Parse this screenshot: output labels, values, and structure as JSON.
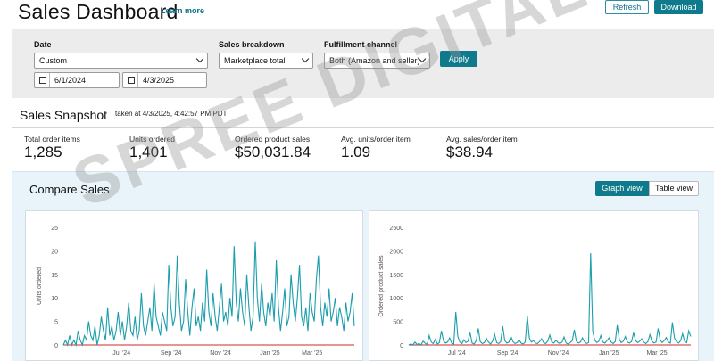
{
  "header": {
    "title": "Sales Dashboard",
    "learn_more": "Learn more",
    "refresh_label": "Refresh",
    "download_label": "Download"
  },
  "filters": {
    "date_label": "Date",
    "date_range_value": "Custom",
    "start_date": "6/1/2024",
    "end_date": "4/3/2025",
    "breakdown_label": "Sales breakdown",
    "breakdown_value": "Marketplace total",
    "channel_label": "Fulfillment channel",
    "channel_value": "Both (Amazon and seller)",
    "apply_label": "Apply"
  },
  "snapshot": {
    "title": "Sales Snapshot",
    "taken_at": "taken at 4/3/2025, 4:42:57 PM PDT",
    "metrics": [
      {
        "label": "Total order items",
        "value": "1,285"
      },
      {
        "label": "Units ordered",
        "value": "1,401"
      },
      {
        "label": "Ordered product sales",
        "value": "$50,031.84"
      },
      {
        "label": "Avg. units/order item",
        "value": "1.09"
      },
      {
        "label": "Avg. sales/order item",
        "value": "$38.94"
      }
    ]
  },
  "compare": {
    "title": "Compare Sales",
    "graph_view_label": "Graph view",
    "table_view_label": "Table view"
  },
  "watermark": "SPREE DIGITAL",
  "colors": {
    "accent": "#0f7a8c",
    "series": "#1a9eac",
    "baseline": "#d9534f"
  },
  "chart_data": [
    {
      "type": "line",
      "ylabel": "Units ordered",
      "yticks": [
        "0",
        "5",
        "10",
        "15",
        "20",
        "25"
      ],
      "ylim": [
        0,
        25
      ],
      "xticks": [
        "Jul '24",
        "Sep '24",
        "Nov '24",
        "Jan '25",
        "Mar '25"
      ],
      "series": [
        {
          "values": [
            0,
            1,
            0,
            2,
            0,
            1,
            0,
            3,
            1,
            0,
            2,
            1,
            5,
            2,
            1,
            4,
            0,
            2,
            6,
            3,
            1,
            8,
            2,
            4,
            1,
            3,
            7,
            2,
            5,
            1,
            4,
            9,
            3,
            2,
            6,
            1,
            3,
            11,
            4,
            2,
            5,
            8,
            3,
            13,
            6,
            4,
            2,
            7,
            5,
            3,
            17,
            8,
            4,
            6,
            19,
            9,
            3,
            5,
            14,
            7,
            2,
            8,
            12,
            4,
            6,
            3,
            9,
            5,
            16,
            7,
            4,
            11,
            6,
            3,
            8,
            13,
            5,
            7,
            4,
            10,
            6,
            21,
            9,
            5,
            12,
            7,
            4,
            15,
            8,
            3,
            6,
            22,
            10,
            5,
            13,
            7,
            4,
            9,
            6,
            11,
            5,
            18,
            8,
            3,
            7,
            12,
            4,
            6,
            15,
            9,
            5,
            10,
            17,
            6,
            4,
            8,
            3,
            11,
            7,
            5,
            14,
            19,
            8,
            4,
            9,
            6,
            12,
            5,
            7,
            10,
            4,
            8,
            6,
            3,
            9,
            5,
            7,
            11,
            4
          ]
        }
      ]
    },
    {
      "type": "line",
      "ylabel": "Ordered product sales",
      "yticks": [
        "0",
        "500",
        "1000",
        "1500",
        "2000",
        "2500"
      ],
      "ylim": [
        0,
        2500
      ],
      "xticks": [
        "Jul '24",
        "Sep '24",
        "Nov '24",
        "Jan '25",
        "Mar '25"
      ],
      "series": [
        {
          "values": [
            0,
            20,
            0,
            60,
            10,
            30,
            0,
            80,
            40,
            10,
            200,
            60,
            30,
            120,
            20,
            50,
            300,
            90,
            40,
            60,
            150,
            40,
            20,
            700,
            180,
            60,
            30,
            110,
            50,
            80,
            260,
            40,
            20,
            90,
            350,
            70,
            30,
            50,
            140,
            60,
            20,
            80,
            230,
            50,
            30,
            70,
            400,
            90,
            40,
            60,
            180,
            70,
            30,
            50,
            110,
            40,
            20,
            60,
            620,
            150,
            60,
            90,
            40,
            30,
            70,
            130,
            50,
            30,
            80,
            210,
            60,
            40,
            100,
            50,
            30,
            60,
            170,
            40,
            20,
            50,
            90,
            320,
            80,
            40,
            60,
            150,
            70,
            30,
            50,
            1950,
            300,
            100,
            50,
            80,
            200,
            60,
            40,
            90,
            150,
            60,
            30,
            70,
            420,
            120,
            50,
            80,
            180,
            60,
            40,
            70,
            260,
            90,
            50,
            80,
            130,
            60,
            30,
            70,
            220,
            80,
            40,
            60,
            350,
            110,
            50,
            90,
            160,
            60,
            40,
            480,
            150,
            70,
            40,
            90,
            240,
            80,
            50,
            300,
            180
          ]
        }
      ]
    }
  ]
}
